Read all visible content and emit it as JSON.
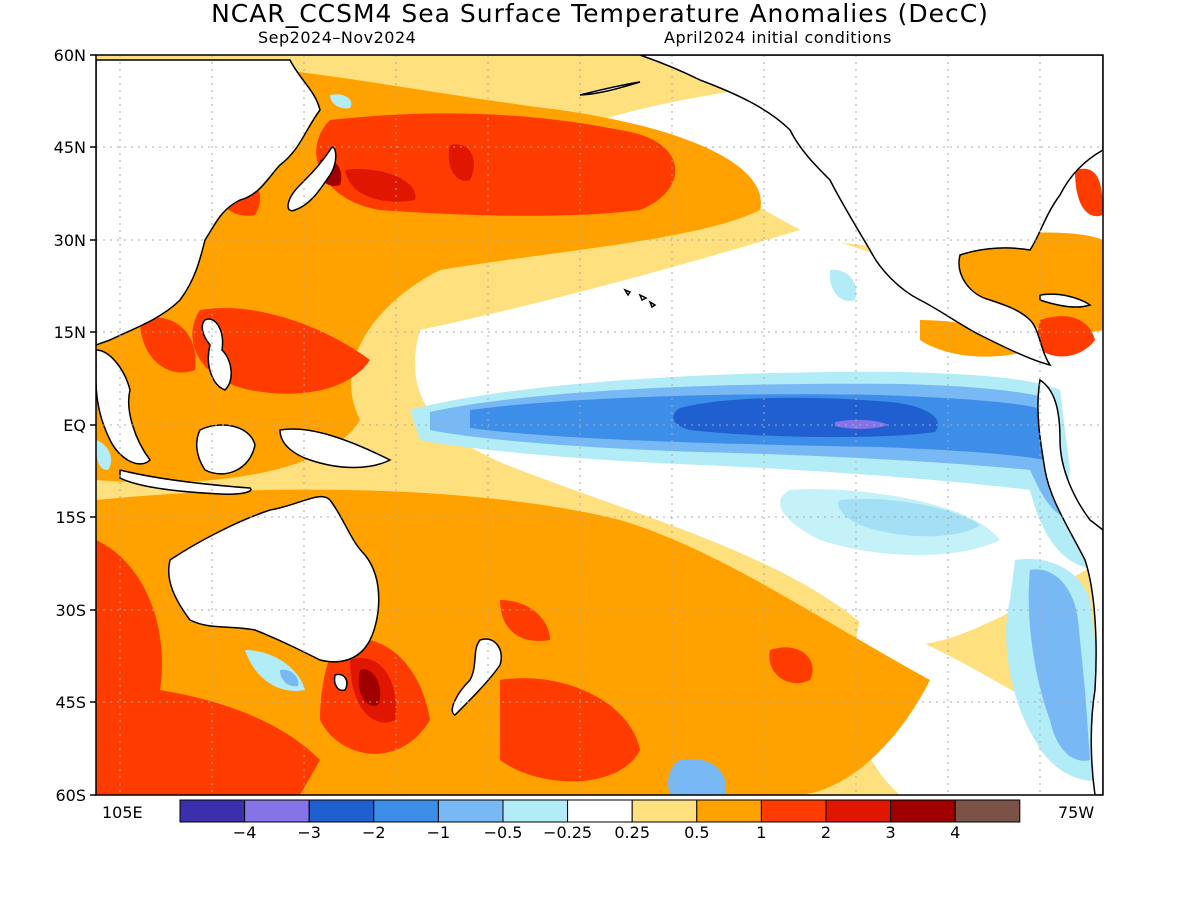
{
  "title": "NCAR_CCSM4 Sea Surface Temperature Anomalies (DecC)",
  "season": "Sep2024–Nov2024",
  "initial_conditions": "April2024 initial conditions",
  "lat_labels": [
    "60N",
    "45N",
    "30N",
    "15N",
    "EQ",
    "15S",
    "30S",
    "45S",
    "60S"
  ],
  "lon_labels": {
    "west": "105E",
    "east": "75W"
  },
  "colorbar": {
    "colors": [
      "#3c2fae",
      "#8573e8",
      "#1f5fd0",
      "#3c8ee8",
      "#78b8f4",
      "#b2ecf6",
      "#ffffff",
      "#ffe07f",
      "#ffa200",
      "#ff3c00",
      "#e01600",
      "#a00000",
      "#7a5246"
    ],
    "labels": [
      "−4",
      "−3",
      "−2",
      "−1",
      "−0.5",
      "−0.25",
      "0.25",
      "0.5",
      "1",
      "2",
      "3",
      "4"
    ]
  },
  "colors": {
    "land": "#ffffff",
    "coast": "#000000",
    "grid": "#aaaaaa"
  }
}
